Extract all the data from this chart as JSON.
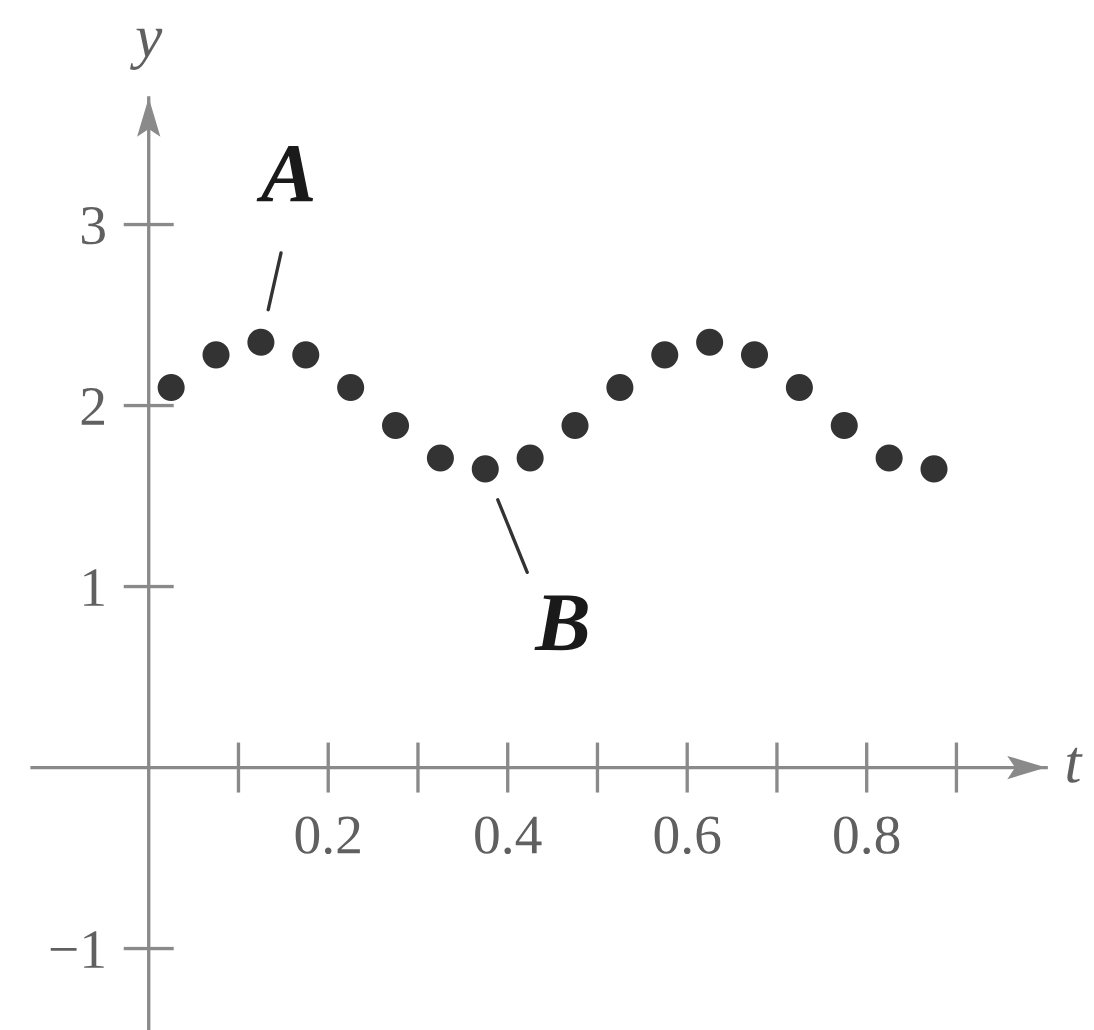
{
  "chart_data": {
    "type": "scatter",
    "xlabel": "t",
    "ylabel": "y",
    "marker": "circle",
    "x": [
      0.025,
      0.075,
      0.125,
      0.175,
      0.225,
      0.275,
      0.325,
      0.375,
      0.425,
      0.475,
      0.525,
      0.575,
      0.625,
      0.675,
      0.725,
      0.775,
      0.825,
      0.875
    ],
    "series": [
      {
        "color": "#333333",
        "values": [
          2.1,
          2.28,
          2.35,
          2.28,
          2.1,
          1.89,
          1.71,
          1.65,
          1.71,
          1.89,
          2.1,
          2.28,
          2.35,
          2.28,
          2.1,
          1.89,
          1.71,
          1.65
        ]
      }
    ],
    "xlim": [
      -0.13,
      1.0
    ],
    "ylim": [
      -1.45,
      3.7
    ],
    "xticks": [
      {
        "value": 0.1,
        "label": null
      },
      0.2,
      {
        "value": 0.3,
        "label": null
      },
      0.4,
      {
        "value": 0.5,
        "label": null
      },
      0.6,
      {
        "value": 0.7,
        "label": null
      },
      0.8,
      {
        "value": 0.9,
        "label": null
      }
    ],
    "yticks": [
      {
        "value": -1,
        "label": "−1"
      },
      1,
      2,
      3
    ],
    "annotations": [
      {
        "text": "A",
        "x": 0.125,
        "y": 2.35
      },
      {
        "text": "B",
        "x": 0.375,
        "y": 1.65
      }
    ]
  }
}
